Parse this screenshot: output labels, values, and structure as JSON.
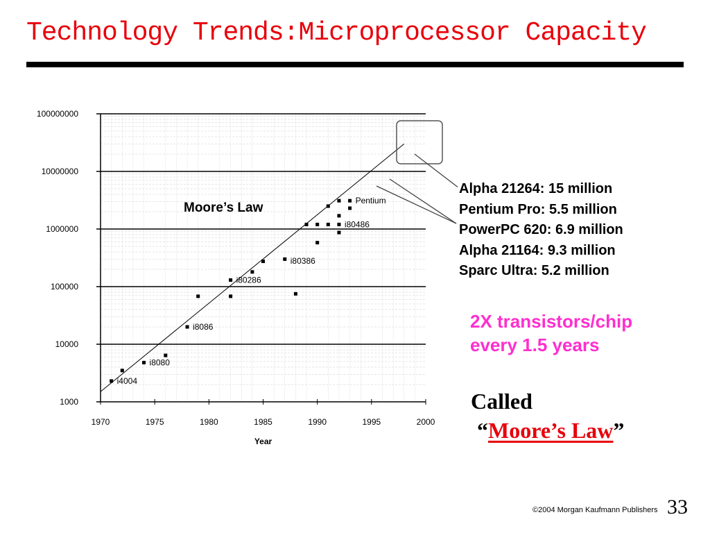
{
  "slide": {
    "title": "Technology Trends:Microprocessor Capacity",
    "page_number": "33",
    "footer": "©2004 Morgan Kaufmann Publishers"
  },
  "chips": [
    "Alpha 21264: 15 million",
    "Pentium Pro: 5.5 million",
    "PowerPC 620: 6.9 million",
    "Alpha 21164: 9.3 million",
    "Sparc Ultra: 5.2 million"
  ],
  "trend": {
    "line1": "2X transistors/chip",
    "line2": "every 1.5 years"
  },
  "called": {
    "word": "Called",
    "open_quote": "“",
    "name": "Moore’s Law",
    "close_quote": "”"
  },
  "chart_data": {
    "type": "scatter",
    "title": "",
    "xlabel": "Year",
    "ylabel": "",
    "xlim": [
      1970,
      2000
    ],
    "ylim": [
      1000,
      100000000
    ],
    "yscale": "log",
    "grid": true,
    "xticks": [
      "1970",
      "1975",
      "1980",
      "1985",
      "1990",
      "1995",
      "2000"
    ],
    "yticks": [
      "100000000",
      "10000000",
      "1000000",
      "100000",
      "10000",
      "1000"
    ],
    "annotation": "Moore’s Law",
    "trend_line": {
      "x": [
        1970,
        1998
      ],
      "y": [
        1500,
        30000000
      ]
    },
    "callout_colors": {
      "line": "#444444",
      "box": "#555555",
      "annotation_text": "#e8000b",
      "trend_text": "#ff2ecf"
    },
    "labels": [
      {
        "text": "i4004",
        "x": 1971,
        "y": 2300
      },
      {
        "text": "i8080",
        "x": 1974,
        "y": 4800
      },
      {
        "text": "i8086",
        "x": 1978,
        "y": 20000
      },
      {
        "text": "i80286",
        "x": 1982,
        "y": 130000
      },
      {
        "text": "i80386",
        "x": 1987,
        "y": 280000
      },
      {
        "text": "i80486",
        "x": 1992,
        "y": 1200000
      },
      {
        "text": "Pentium",
        "x": 1993,
        "y": 3100000
      }
    ],
    "points": [
      {
        "x": 1971,
        "y": 2300
      },
      {
        "x": 1972,
        "y": 3500
      },
      {
        "x": 1974,
        "y": 4800
      },
      {
        "x": 1976,
        "y": 6400
      },
      {
        "x": 1978,
        "y": 20000
      },
      {
        "x": 1979,
        "y": 68000
      },
      {
        "x": 1982,
        "y": 68000
      },
      {
        "x": 1982,
        "y": 130000
      },
      {
        "x": 1984,
        "y": 180000
      },
      {
        "x": 1985,
        "y": 275000
      },
      {
        "x": 1987,
        "y": 300000
      },
      {
        "x": 1988,
        "y": 75000
      },
      {
        "x": 1989,
        "y": 1200000
      },
      {
        "x": 1990,
        "y": 1200000
      },
      {
        "x": 1990,
        "y": 580000
      },
      {
        "x": 1991,
        "y": 1200000
      },
      {
        "x": 1991,
        "y": 2500000
      },
      {
        "x": 1992,
        "y": 3100000
      },
      {
        "x": 1992,
        "y": 1700000
      },
      {
        "x": 1992,
        "y": 870000
      },
      {
        "x": 1992,
        "y": 1200000
      },
      {
        "x": 1993,
        "y": 3100000
      },
      {
        "x": 1993,
        "y": 2300000
      }
    ]
  }
}
